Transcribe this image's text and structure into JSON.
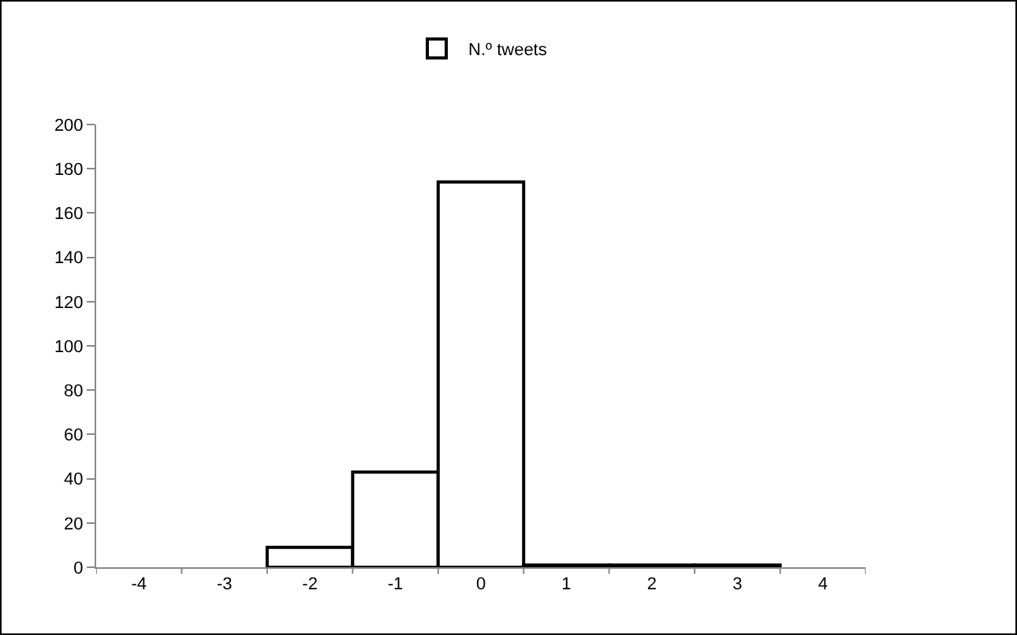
{
  "chart_data": {
    "type": "bar",
    "categories": [
      "-4",
      "-3",
      "-2",
      "-1",
      "0",
      "1",
      "2",
      "3",
      "4"
    ],
    "series": [
      {
        "name": "N.º tweets",
        "color": "#ffffff",
        "values": [
          0,
          0,
          9,
          43,
          174,
          1,
          1,
          1,
          0
        ]
      }
    ],
    "ylim": [
      0,
      200
    ],
    "yticks": [
      0,
      20,
      40,
      60,
      80,
      100,
      120,
      140,
      160,
      180,
      200
    ],
    "grid": false,
    "legend": "top"
  }
}
